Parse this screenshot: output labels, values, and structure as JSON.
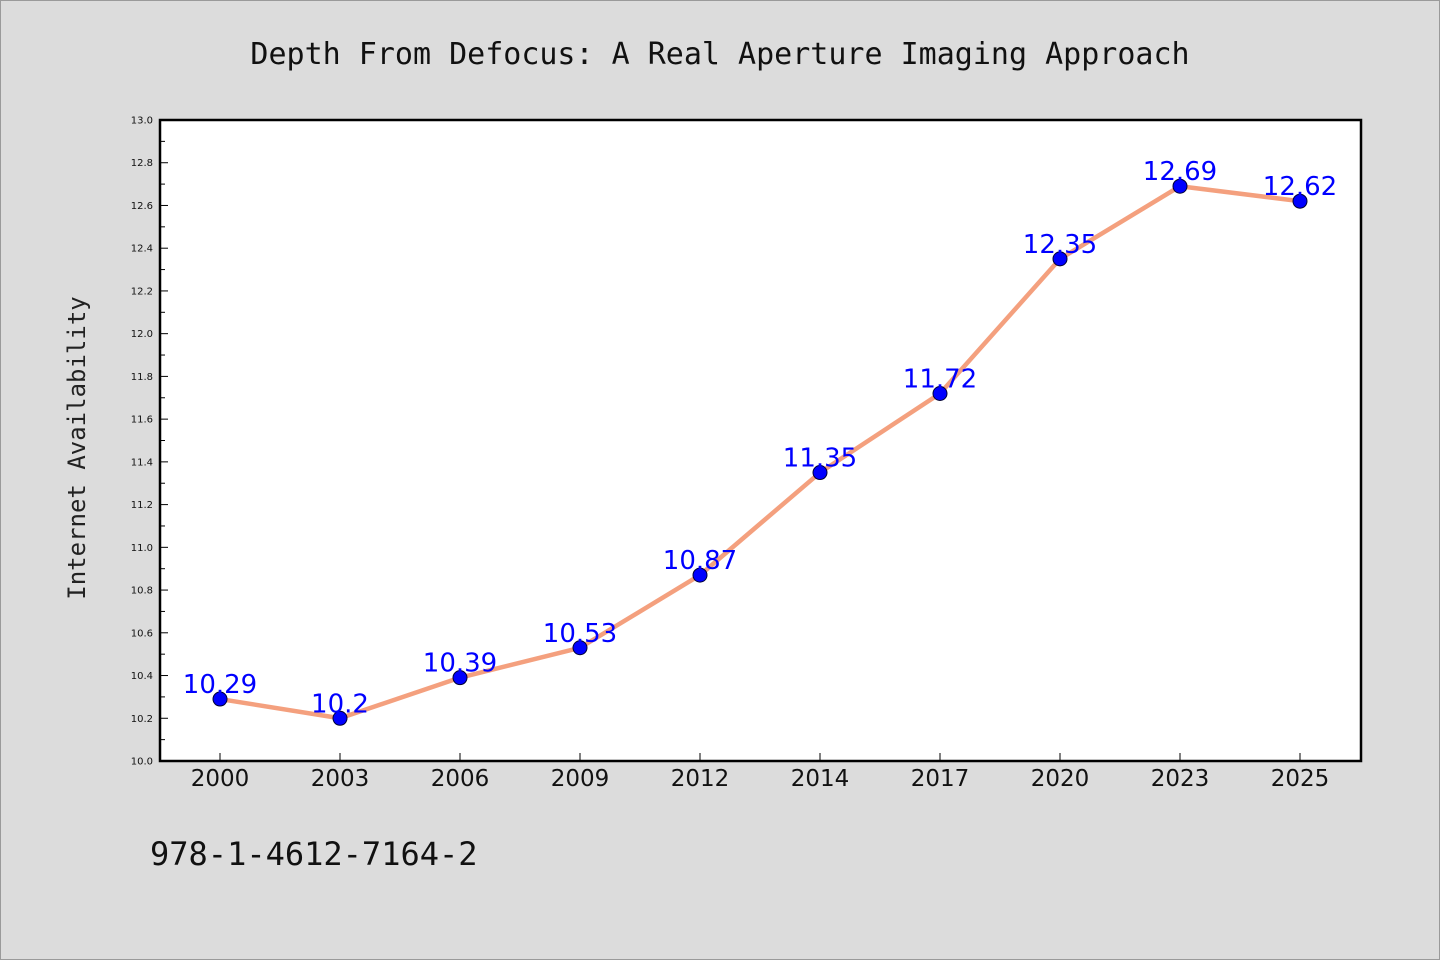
{
  "chart_data": {
    "type": "line",
    "title": "Depth From Defocus: A Real Aperture Imaging Approach",
    "xlabel": "",
    "ylabel": "Internet Availability",
    "categories": [
      "2000",
      "2003",
      "2006",
      "2009",
      "2012",
      "2014",
      "2017",
      "2020",
      "2023",
      "2025"
    ],
    "values": [
      10.29,
      10.2,
      10.39,
      10.53,
      10.87,
      11.35,
      11.72,
      12.35,
      12.69,
      12.62
    ],
    "data_labels": [
      "10.29",
      "10.2",
      "10.39",
      "10.53",
      "10.87",
      "11.35",
      "11.72",
      "12.35",
      "12.69",
      "12.62"
    ],
    "ylim": [
      10.0,
      13.0
    ],
    "yticks": [
      "10.0",
      "10.2",
      "10.4",
      "10.6",
      "10.8",
      "11.0",
      "11.2",
      "11.4",
      "11.6",
      "11.8",
      "12.0",
      "12.2",
      "12.4",
      "12.6",
      "12.8",
      "13.0"
    ],
    "grid": false,
    "legend": "none",
    "line_color": "#f4a07e",
    "marker_color": "#0000ff",
    "label_color": "#0000ff"
  },
  "footer": {
    "isbn": "978-1-4612-7164-2"
  },
  "colors": {
    "background": "#dcdcdc",
    "plot_area": "#ffffff"
  }
}
